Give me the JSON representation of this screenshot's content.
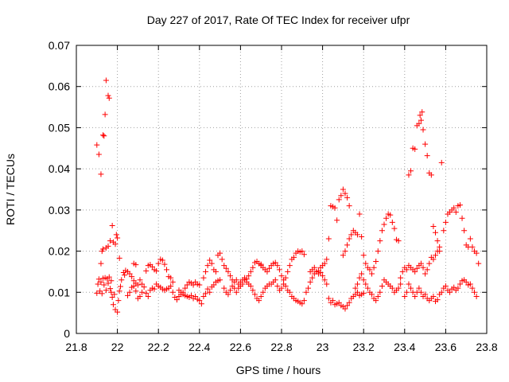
{
  "chart_data": {
    "type": "scatter",
    "title": "Day 227 of 2017, Rate Of TEC Index for receiver ufpr",
    "xlabel": "GPS time / hours",
    "ylabel": "ROTI / TECUs",
    "xlim": [
      21.8,
      23.8
    ],
    "ylim": [
      0,
      0.07
    ],
    "grid": true,
    "marker": "+",
    "marker_color": "#ff0000",
    "x_ticks": [
      "21.8",
      "22",
      "22.2",
      "22.4",
      "22.6",
      "22.8",
      "23",
      "23.2",
      "23.4",
      "23.6",
      "23.8"
    ],
    "y_ticks": [
      "0",
      "0.01",
      "0.02",
      "0.03",
      "0.04",
      "0.05",
      "0.06",
      "0.07"
    ],
    "points": [
      [
        21.9,
        0.0458
      ],
      [
        21.91,
        0.0435
      ],
      [
        21.92,
        0.0387
      ],
      [
        21.93,
        0.0482
      ],
      [
        21.935,
        0.048
      ],
      [
        21.94,
        0.0532
      ],
      [
        21.945,
        0.0615
      ],
      [
        21.955,
        0.0578
      ],
      [
        21.96,
        0.0572
      ],
      [
        21.9,
        0.0098
      ],
      [
        21.905,
        0.012
      ],
      [
        21.91,
        0.0132
      ],
      [
        21.915,
        0.0103
      ],
      [
        21.92,
        0.0125
      ],
      [
        21.925,
        0.0097
      ],
      [
        21.93,
        0.0134
      ],
      [
        21.935,
        0.0118
      ],
      [
        21.94,
        0.0135
      ],
      [
        21.945,
        0.0105
      ],
      [
        21.95,
        0.0133
      ],
      [
        21.955,
        0.0122
      ],
      [
        21.96,
        0.0137
      ],
      [
        21.965,
        0.0109
      ],
      [
        21.97,
        0.0128
      ],
      [
        21.92,
        0.017
      ],
      [
        21.925,
        0.02
      ],
      [
        21.93,
        0.0205
      ],
      [
        21.945,
        0.0208
      ],
      [
        21.955,
        0.0212
      ],
      [
        21.965,
        0.0225
      ],
      [
        21.975,
        0.0262
      ],
      [
        21.98,
        0.0222
      ],
      [
        21.99,
        0.0217
      ],
      [
        21.995,
        0.024
      ],
      [
        22.0,
        0.0232
      ],
      [
        22.01,
        0.0183
      ],
      [
        21.97,
        0.01
      ],
      [
        21.975,
        0.0088
      ],
      [
        21.98,
        0.007
      ],
      [
        21.985,
        0.0095
      ],
      [
        21.99,
        0.0058
      ],
      [
        22.0,
        0.0052
      ],
      [
        22.005,
        0.008
      ],
      [
        22.01,
        0.0103
      ],
      [
        22.015,
        0.0114
      ],
      [
        22.02,
        0.013
      ],
      [
        22.03,
        0.0148
      ],
      [
        22.035,
        0.0142
      ],
      [
        22.04,
        0.0153
      ],
      [
        22.05,
        0.015
      ],
      [
        22.06,
        0.0145
      ],
      [
        22.07,
        0.0138
      ],
      [
        22.08,
        0.0115
      ],
      [
        22.09,
        0.0103
      ],
      [
        22.1,
        0.0085
      ],
      [
        22.11,
        0.009
      ],
      [
        22.12,
        0.01
      ],
      [
        22.13,
        0.0113
      ],
      [
        22.05,
        0.0092
      ],
      [
        22.06,
        0.01
      ],
      [
        22.07,
        0.0112
      ],
      [
        22.08,
        0.0128
      ],
      [
        22.09,
        0.0122
      ],
      [
        22.1,
        0.0118
      ],
      [
        22.11,
        0.013
      ],
      [
        22.12,
        0.012
      ],
      [
        22.14,
        0.0152
      ],
      [
        22.15,
        0.0165
      ],
      [
        22.16,
        0.0167
      ],
      [
        22.17,
        0.0162
      ],
      [
        22.18,
        0.0155
      ],
      [
        22.19,
        0.0152
      ],
      [
        22.2,
        0.017
      ],
      [
        22.21,
        0.018
      ],
      [
        22.22,
        0.0178
      ],
      [
        22.23,
        0.0168
      ],
      [
        22.24,
        0.0155
      ],
      [
        22.25,
        0.0138
      ],
      [
        22.26,
        0.0135
      ],
      [
        22.27,
        0.0125
      ],
      [
        22.08,
        0.017
      ],
      [
        22.09,
        0.0167
      ],
      [
        22.14,
        0.0098
      ],
      [
        22.15,
        0.009
      ],
      [
        22.16,
        0.0105
      ],
      [
        22.17,
        0.011
      ],
      [
        22.18,
        0.0108
      ],
      [
        22.19,
        0.012
      ],
      [
        22.2,
        0.0115
      ],
      [
        22.21,
        0.0112
      ],
      [
        22.22,
        0.0108
      ],
      [
        22.23,
        0.0105
      ],
      [
        22.24,
        0.0108
      ],
      [
        22.25,
        0.011
      ],
      [
        22.26,
        0.0115
      ],
      [
        22.27,
        0.01
      ],
      [
        22.28,
        0.0088
      ],
      [
        22.29,
        0.0082
      ],
      [
        22.3,
        0.009
      ],
      [
        22.31,
        0.0095
      ],
      [
        22.32,
        0.01
      ],
      [
        22.33,
        0.011
      ],
      [
        22.34,
        0.0118
      ],
      [
        22.35,
        0.0125
      ],
      [
        22.36,
        0.0122
      ],
      [
        22.37,
        0.0118
      ],
      [
        22.38,
        0.0125
      ],
      [
        22.39,
        0.012
      ],
      [
        22.4,
        0.0118
      ],
      [
        22.3,
        0.0105
      ],
      [
        22.31,
        0.01
      ],
      [
        22.32,
        0.0095
      ],
      [
        22.33,
        0.0092
      ],
      [
        22.34,
        0.009
      ],
      [
        22.35,
        0.0088
      ],
      [
        22.36,
        0.0092
      ],
      [
        22.37,
        0.0085
      ],
      [
        22.38,
        0.009
      ],
      [
        22.39,
        0.0083
      ],
      [
        22.4,
        0.008
      ],
      [
        22.41,
        0.0072
      ],
      [
        22.42,
        0.009
      ],
      [
        22.43,
        0.0097
      ],
      [
        22.44,
        0.0108
      ],
      [
        22.45,
        0.01
      ],
      [
        22.46,
        0.0113
      ],
      [
        22.47,
        0.0118
      ],
      [
        22.48,
        0.0125
      ],
      [
        22.49,
        0.0128
      ],
      [
        22.5,
        0.013
      ],
      [
        22.42,
        0.0135
      ],
      [
        22.43,
        0.015
      ],
      [
        22.44,
        0.0165
      ],
      [
        22.45,
        0.0178
      ],
      [
        22.46,
        0.017
      ],
      [
        22.47,
        0.0155
      ],
      [
        22.48,
        0.015
      ],
      [
        22.49,
        0.019
      ],
      [
        22.5,
        0.0195
      ],
      [
        22.51,
        0.018
      ],
      [
        22.52,
        0.0165
      ],
      [
        22.53,
        0.0158
      ],
      [
        22.54,
        0.015
      ],
      [
        22.55,
        0.014
      ],
      [
        22.56,
        0.013
      ],
      [
        22.57,
        0.0125
      ],
      [
        22.58,
        0.013
      ],
      [
        22.59,
        0.012
      ],
      [
        22.6,
        0.0125
      ],
      [
        22.61,
        0.013
      ],
      [
        22.62,
        0.0135
      ],
      [
        22.63,
        0.0132
      ],
      [
        22.64,
        0.014
      ],
      [
        22.65,
        0.015
      ],
      [
        22.66,
        0.016
      ],
      [
        22.67,
        0.0172
      ],
      [
        22.68,
        0.0175
      ],
      [
        22.69,
        0.017
      ],
      [
        22.7,
        0.0168
      ],
      [
        22.52,
        0.011
      ],
      [
        22.53,
        0.01
      ],
      [
        22.54,
        0.0095
      ],
      [
        22.55,
        0.0105
      ],
      [
        22.56,
        0.0115
      ],
      [
        22.57,
        0.011
      ],
      [
        22.58,
        0.01
      ],
      [
        22.59,
        0.011
      ],
      [
        22.6,
        0.0115
      ],
      [
        22.61,
        0.012
      ],
      [
        22.62,
        0.013
      ],
      [
        22.63,
        0.0125
      ],
      [
        22.64,
        0.012
      ],
      [
        22.65,
        0.0115
      ],
      [
        22.66,
        0.0105
      ],
      [
        22.67,
        0.0095
      ],
      [
        22.68,
        0.0085
      ],
      [
        22.69,
        0.008
      ],
      [
        22.7,
        0.009
      ],
      [
        22.71,
        0.01
      ],
      [
        22.72,
        0.011
      ],
      [
        22.73,
        0.0115
      ],
      [
        22.74,
        0.012
      ],
      [
        22.7,
        0.0165
      ],
      [
        22.71,
        0.016
      ],
      [
        22.72,
        0.0155
      ],
      [
        22.73,
        0.015
      ],
      [
        22.74,
        0.0158
      ],
      [
        22.75,
        0.0165
      ],
      [
        22.76,
        0.017
      ],
      [
        22.77,
        0.0172
      ],
      [
        22.78,
        0.0165
      ],
      [
        22.79,
        0.0155
      ],
      [
        22.8,
        0.014
      ],
      [
        22.81,
        0.013
      ],
      [
        22.82,
        0.0135
      ],
      [
        22.83,
        0.015
      ],
      [
        22.84,
        0.0165
      ],
      [
        22.85,
        0.018
      ],
      [
        22.86,
        0.0185
      ],
      [
        22.87,
        0.0195
      ],
      [
        22.88,
        0.02
      ],
      [
        22.89,
        0.0198
      ],
      [
        22.9,
        0.02
      ],
      [
        22.91,
        0.0192
      ],
      [
        22.75,
        0.012
      ],
      [
        22.76,
        0.0125
      ],
      [
        22.77,
        0.013
      ],
      [
        22.78,
        0.0115
      ],
      [
        22.79,
        0.0105
      ],
      [
        22.8,
        0.011
      ],
      [
        22.81,
        0.012
      ],
      [
        22.82,
        0.0115
      ],
      [
        22.83,
        0.0105
      ],
      [
        22.84,
        0.01
      ],
      [
        22.85,
        0.009
      ],
      [
        22.86,
        0.0085
      ],
      [
        22.87,
        0.008
      ],
      [
        22.88,
        0.0078
      ],
      [
        22.89,
        0.0075
      ],
      [
        22.9,
        0.0072
      ],
      [
        22.91,
        0.008
      ],
      [
        22.92,
        0.01
      ],
      [
        22.93,
        0.011
      ],
      [
        22.94,
        0.0125
      ],
      [
        22.95,
        0.0135
      ],
      [
        22.96,
        0.0145
      ],
      [
        22.97,
        0.015
      ],
      [
        22.98,
        0.0152
      ],
      [
        22.99,
        0.0148
      ],
      [
        23.0,
        0.014
      ],
      [
        23.01,
        0.013
      ],
      [
        23.02,
        0.012
      ],
      [
        22.94,
        0.015
      ],
      [
        22.95,
        0.0155
      ],
      [
        22.96,
        0.016
      ],
      [
        22.97,
        0.015
      ],
      [
        22.98,
        0.0145
      ],
      [
        22.99,
        0.016
      ],
      [
        23.0,
        0.0165
      ],
      [
        23.01,
        0.017
      ],
      [
        23.02,
        0.018
      ],
      [
        23.03,
        0.023
      ],
      [
        23.04,
        0.031
      ],
      [
        23.05,
        0.0308
      ],
      [
        23.06,
        0.0305
      ],
      [
        23.07,
        0.0275
      ],
      [
        23.08,
        0.0325
      ],
      [
        23.09,
        0.0335
      ],
      [
        23.1,
        0.035
      ],
      [
        23.11,
        0.034
      ],
      [
        23.12,
        0.033
      ],
      [
        23.13,
        0.031
      ],
      [
        23.03,
        0.0085
      ],
      [
        23.04,
        0.0075
      ],
      [
        23.05,
        0.008
      ],
      [
        23.06,
        0.007
      ],
      [
        23.07,
        0.0072
      ],
      [
        23.08,
        0.0075
      ],
      [
        23.09,
        0.0068
      ],
      [
        23.1,
        0.0065
      ],
      [
        23.11,
        0.006
      ],
      [
        23.12,
        0.0068
      ],
      [
        23.13,
        0.0075
      ],
      [
        23.14,
        0.0085
      ],
      [
        23.15,
        0.009
      ],
      [
        23.16,
        0.0095
      ],
      [
        23.17,
        0.01
      ],
      [
        23.18,
        0.0092
      ],
      [
        23.19,
        0.0095
      ],
      [
        23.2,
        0.0098
      ],
      [
        23.1,
        0.019
      ],
      [
        23.11,
        0.02
      ],
      [
        23.12,
        0.0215
      ],
      [
        23.13,
        0.023
      ],
      [
        23.14,
        0.024
      ],
      [
        23.15,
        0.025
      ],
      [
        23.16,
        0.0245
      ],
      [
        23.17,
        0.024
      ],
      [
        23.18,
        0.029
      ],
      [
        23.19,
        0.0235
      ],
      [
        23.2,
        0.019
      ],
      [
        23.21,
        0.017
      ],
      [
        23.22,
        0.016
      ],
      [
        23.23,
        0.0155
      ],
      [
        23.24,
        0.0145
      ],
      [
        23.25,
        0.016
      ],
      [
        23.26,
        0.0175
      ],
      [
        23.27,
        0.02
      ],
      [
        23.28,
        0.0225
      ],
      [
        23.29,
        0.025
      ],
      [
        23.3,
        0.0265
      ],
      [
        23.31,
        0.028
      ],
      [
        23.32,
        0.029
      ],
      [
        23.33,
        0.0288
      ],
      [
        23.34,
        0.027
      ],
      [
        23.35,
        0.0255
      ],
      [
        23.36,
        0.0228
      ],
      [
        23.37,
        0.0225
      ],
      [
        23.16,
        0.011
      ],
      [
        23.17,
        0.012
      ],
      [
        23.18,
        0.0135
      ],
      [
        23.19,
        0.0145
      ],
      [
        23.2,
        0.013
      ],
      [
        23.21,
        0.012
      ],
      [
        23.22,
        0.011
      ],
      [
        23.23,
        0.01
      ],
      [
        23.24,
        0.0095
      ],
      [
        23.25,
        0.0085
      ],
      [
        23.26,
        0.008
      ],
      [
        23.27,
        0.009
      ],
      [
        23.28,
        0.01
      ],
      [
        23.29,
        0.0115
      ],
      [
        23.3,
        0.013
      ],
      [
        23.31,
        0.0125
      ],
      [
        23.32,
        0.012
      ],
      [
        23.33,
        0.0115
      ],
      [
        23.34,
        0.011
      ],
      [
        23.35,
        0.01
      ],
      [
        23.36,
        0.0105
      ],
      [
        23.37,
        0.011
      ],
      [
        23.38,
        0.012
      ],
      [
        23.38,
        0.0135
      ],
      [
        23.39,
        0.015
      ],
      [
        23.4,
        0.016
      ],
      [
        23.41,
        0.0155
      ],
      [
        23.42,
        0.0165
      ],
      [
        23.43,
        0.016
      ],
      [
        23.44,
        0.0155
      ],
      [
        23.45,
        0.015
      ],
      [
        23.46,
        0.0158
      ],
      [
        23.47,
        0.0165
      ],
      [
        23.48,
        0.017
      ],
      [
        23.49,
        0.016
      ],
      [
        23.5,
        0.0145
      ],
      [
        23.51,
        0.0155
      ],
      [
        23.52,
        0.017
      ],
      [
        23.53,
        0.0185
      ],
      [
        23.54,
        0.018
      ],
      [
        23.55,
        0.019
      ],
      [
        23.56,
        0.02
      ],
      [
        23.57,
        0.021
      ],
      [
        23.42,
        0.0385
      ],
      [
        23.43,
        0.0395
      ],
      [
        23.44,
        0.045
      ],
      [
        23.45,
        0.0448
      ],
      [
        23.46,
        0.0505
      ],
      [
        23.47,
        0.051
      ],
      [
        23.475,
        0.053
      ],
      [
        23.48,
        0.0518
      ],
      [
        23.485,
        0.0538
      ],
      [
        23.49,
        0.0495
      ],
      [
        23.5,
        0.046
      ],
      [
        23.51,
        0.0432
      ],
      [
        23.52,
        0.039
      ],
      [
        23.53,
        0.0385
      ],
      [
        23.4,
        0.009
      ],
      [
        23.41,
        0.01
      ],
      [
        23.42,
        0.012
      ],
      [
        23.43,
        0.011
      ],
      [
        23.44,
        0.01
      ],
      [
        23.45,
        0.009
      ],
      [
        23.46,
        0.01
      ],
      [
        23.47,
        0.011
      ],
      [
        23.48,
        0.01
      ],
      [
        23.49,
        0.009
      ],
      [
        23.5,
        0.0095
      ],
      [
        23.51,
        0.0085
      ],
      [
        23.52,
        0.008
      ],
      [
        23.53,
        0.0085
      ],
      [
        23.54,
        0.009
      ],
      [
        23.55,
        0.0078
      ],
      [
        23.56,
        0.0082
      ],
      [
        23.57,
        0.0095
      ],
      [
        23.58,
        0.01
      ],
      [
        23.59,
        0.011
      ],
      [
        23.6,
        0.0115
      ],
      [
        23.61,
        0.0105
      ],
      [
        23.62,
        0.01
      ],
      [
        23.63,
        0.0108
      ],
      [
        23.64,
        0.0112
      ],
      [
        23.65,
        0.0105
      ],
      [
        23.66,
        0.011
      ],
      [
        23.67,
        0.012
      ],
      [
        23.68,
        0.0128
      ],
      [
        23.69,
        0.013
      ],
      [
        23.7,
        0.0125
      ],
      [
        23.71,
        0.0118
      ],
      [
        23.72,
        0.012
      ],
      [
        23.73,
        0.011
      ],
      [
        23.74,
        0.01
      ],
      [
        23.75,
        0.009
      ],
      [
        23.54,
        0.026
      ],
      [
        23.55,
        0.0245
      ],
      [
        23.56,
        0.0225
      ],
      [
        23.57,
        0.02
      ],
      [
        23.58,
        0.0415
      ],
      [
        23.59,
        0.025
      ],
      [
        23.6,
        0.027
      ],
      [
        23.61,
        0.029
      ],
      [
        23.62,
        0.0295
      ],
      [
        23.63,
        0.03
      ],
      [
        23.64,
        0.0305
      ],
      [
        23.65,
        0.0295
      ],
      [
        23.66,
        0.031
      ],
      [
        23.67,
        0.0312
      ],
      [
        23.68,
        0.028
      ],
      [
        23.69,
        0.025
      ],
      [
        23.7,
        0.0215
      ],
      [
        23.71,
        0.021
      ],
      [
        23.72,
        0.023
      ],
      [
        23.73,
        0.021
      ],
      [
        23.74,
        0.02
      ],
      [
        23.75,
        0.0195
      ],
      [
        23.76,
        0.017
      ]
    ]
  }
}
